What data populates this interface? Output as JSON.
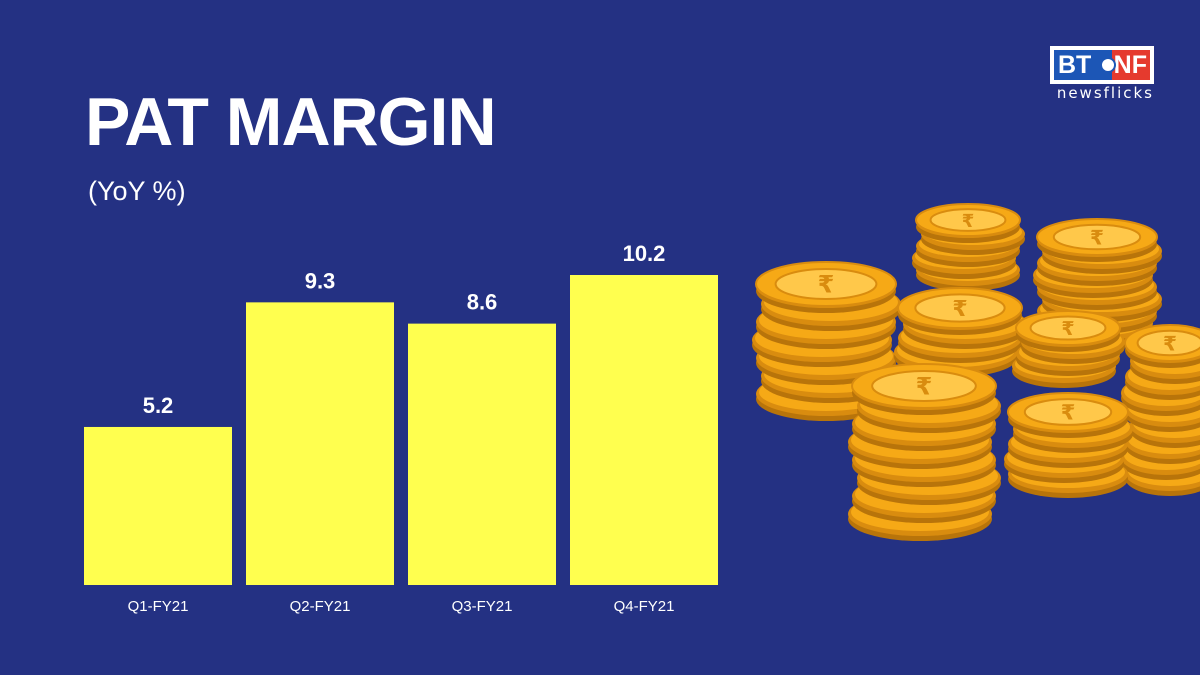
{
  "header": {
    "title": "PAT MARGIN",
    "subtitle": "(YoY %)"
  },
  "logo": {
    "left": "BT",
    "right": "NF",
    "tagline": "newsflicks"
  },
  "colors": {
    "background": "#243183",
    "bar": "#ffff4f",
    "text": "#ffffff",
    "coin": "#f6a916"
  },
  "decoration": {
    "icon": "rupee-coin-stacks-illustration"
  },
  "chart_data": {
    "type": "bar",
    "title": "PAT MARGIN",
    "subtitle": "(YoY %)",
    "categories": [
      "Q1-FY21",
      "Q2-FY21",
      "Q3-FY21",
      "Q4-FY21"
    ],
    "values": [
      5.2,
      9.3,
      8.6,
      10.2
    ],
    "data_labels": [
      "5.2",
      "9.3",
      "8.6",
      "10.2"
    ],
    "ylim": [
      0,
      10.2
    ],
    "grid": false,
    "legend": "none"
  }
}
